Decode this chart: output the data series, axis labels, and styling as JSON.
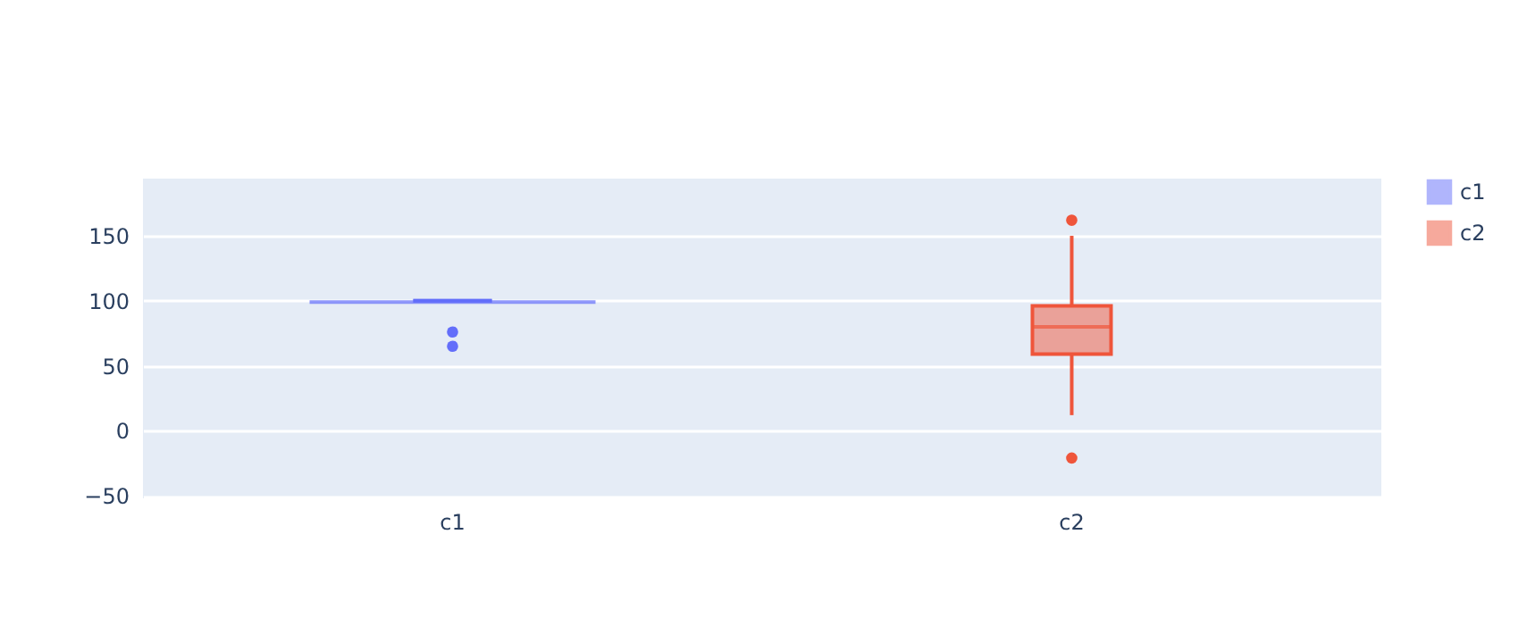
{
  "chart_data": {
    "type": "box",
    "categories": [
      "c1",
      "c2"
    ],
    "ylim": [
      -52,
      194
    ],
    "yticks": [
      {
        "value": -50,
        "label": "−50"
      },
      0,
      50,
      100,
      150
    ],
    "grid": "y",
    "legend": "top right",
    "series": [
      {
        "name": "c1",
        "color": "#636efa",
        "boxes": [
          {
            "low": 100,
            "q1": 100,
            "median": 100,
            "q3": 100,
            "high": 100,
            "mean": 99,
            "outliers": [
              76,
              65
            ]
          },
          null
        ]
      },
      {
        "name": "c2",
        "color": "#ef553b",
        "boxes": [
          null,
          {
            "low": 12,
            "q1": 59,
            "median": 80,
            "q3": 96,
            "high": 150,
            "outliers": [
              162,
              -21
            ]
          }
        ]
      }
    ]
  }
}
